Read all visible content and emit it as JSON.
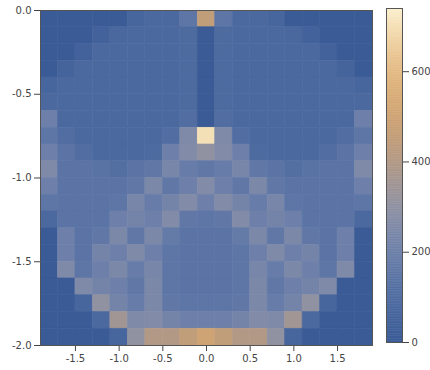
{
  "chart_data": {
    "type": "contour",
    "xlim": [
      -1.9,
      1.9
    ],
    "ylim": [
      -2.0,
      0.0
    ],
    "xticks": [
      -1.5,
      {
        "value": -1,
        "label": "-1.0"
      },
      -0.5,
      {
        "value": 0,
        "label": "0.0"
      },
      0.5,
      {
        "value": 1,
        "label": "1.0"
      },
      1.5
    ],
    "yticks": [
      {
        "value": -2,
        "label": "-2.0"
      },
      -1.5,
      {
        "value": -1,
        "label": "-1.0"
      },
      -0.5,
      {
        "value": 0,
        "label": "0.0"
      }
    ],
    "cells": {
      "x": [
        -1.8,
        -1.6,
        -1.4,
        -1.2,
        -1.0,
        -0.8,
        -0.6,
        -0.4,
        -0.2,
        0.0,
        0.2,
        0.4,
        0.6,
        0.8,
        1.0,
        1.2,
        1.4,
        1.6,
        1.8
      ],
      "y": [
        -0.05,
        -0.15,
        -0.25,
        -0.35,
        -0.45,
        -0.55,
        -0.65,
        -0.75,
        -0.85,
        -0.95,
        -1.05,
        -1.15,
        -1.25,
        -1.35,
        -1.45,
        -1.55,
        -1.65,
        -1.75,
        -1.85,
        -1.95
      ],
      "values": [
        [
          0,
          0,
          0,
          0,
          0,
          60,
          80,
          80,
          150,
          450,
          150,
          80,
          80,
          60,
          0,
          0,
          0,
          0,
          0
        ],
        [
          0,
          0,
          0,
          40,
          70,
          80,
          80,
          80,
          90,
          0,
          90,
          80,
          80,
          80,
          70,
          40,
          0,
          0,
          0
        ],
        [
          0,
          0,
          40,
          80,
          80,
          80,
          80,
          80,
          90,
          0,
          90,
          80,
          80,
          80,
          80,
          80,
          40,
          0,
          0
        ],
        [
          0,
          50,
          80,
          80,
          80,
          80,
          80,
          80,
          90,
          0,
          90,
          80,
          80,
          80,
          80,
          80,
          80,
          50,
          0
        ],
        [
          60,
          80,
          80,
          80,
          80,
          80,
          80,
          80,
          90,
          0,
          90,
          80,
          80,
          80,
          80,
          80,
          80,
          80,
          60
        ],
        [
          80,
          80,
          80,
          80,
          80,
          80,
          80,
          80,
          90,
          0,
          90,
          80,
          80,
          80,
          80,
          80,
          80,
          80,
          80
        ],
        [
          200,
          80,
          80,
          80,
          80,
          80,
          80,
          80,
          100,
          0,
          100,
          80,
          80,
          80,
          80,
          80,
          80,
          80,
          200
        ],
        [
          150,
          100,
          80,
          80,
          80,
          80,
          80,
          100,
          250,
          700,
          250,
          100,
          80,
          80,
          80,
          80,
          80,
          100,
          150
        ],
        [
          200,
          140,
          100,
          80,
          80,
          80,
          90,
          200,
          260,
          300,
          260,
          200,
          90,
          80,
          80,
          80,
          100,
          140,
          200
        ],
        [
          250,
          140,
          140,
          130,
          110,
          140,
          160,
          230,
          180,
          160,
          180,
          230,
          160,
          140,
          110,
          130,
          140,
          140,
          250
        ],
        [
          200,
          140,
          140,
          140,
          140,
          160,
          240,
          160,
          200,
          260,
          200,
          160,
          240,
          160,
          140,
          140,
          140,
          140,
          200
        ],
        [
          150,
          140,
          140,
          140,
          150,
          230,
          180,
          220,
          260,
          200,
          260,
          220,
          180,
          230,
          150,
          140,
          140,
          140,
          150
        ],
        [
          80,
          140,
          140,
          140,
          200,
          220,
          200,
          260,
          160,
          150,
          160,
          260,
          200,
          220,
          200,
          140,
          140,
          140,
          80
        ],
        [
          0,
          200,
          140,
          160,
          240,
          160,
          240,
          170,
          140,
          140,
          140,
          170,
          240,
          160,
          240,
          160,
          140,
          200,
          0
        ],
        [
          0,
          200,
          140,
          220,
          200,
          250,
          200,
          150,
          140,
          140,
          140,
          150,
          200,
          250,
          200,
          220,
          140,
          200,
          0
        ],
        [
          0,
          250,
          150,
          200,
          240,
          180,
          230,
          150,
          140,
          140,
          140,
          150,
          230,
          180,
          240,
          200,
          150,
          250,
          0
        ],
        [
          0,
          0,
          250,
          220,
          200,
          160,
          240,
          150,
          140,
          140,
          140,
          150,
          240,
          160,
          200,
          220,
          250,
          0,
          0
        ],
        [
          0,
          0,
          60,
          300,
          220,
          180,
          240,
          160,
          150,
          150,
          150,
          160,
          240,
          180,
          220,
          300,
          60,
          0,
          0
        ],
        [
          0,
          0,
          0,
          80,
          350,
          250,
          260,
          220,
          200,
          200,
          200,
          220,
          260,
          250,
          350,
          80,
          0,
          0,
          0
        ],
        [
          0,
          0,
          0,
          0,
          60,
          300,
          400,
          400,
          450,
          500,
          450,
          400,
          400,
          300,
          60,
          0,
          0,
          0,
          0
        ]
      ]
    },
    "colorbar": {
      "range": [
        0,
        740
      ],
      "ticks": [
        0,
        200,
        400,
        600
      ]
    }
  }
}
